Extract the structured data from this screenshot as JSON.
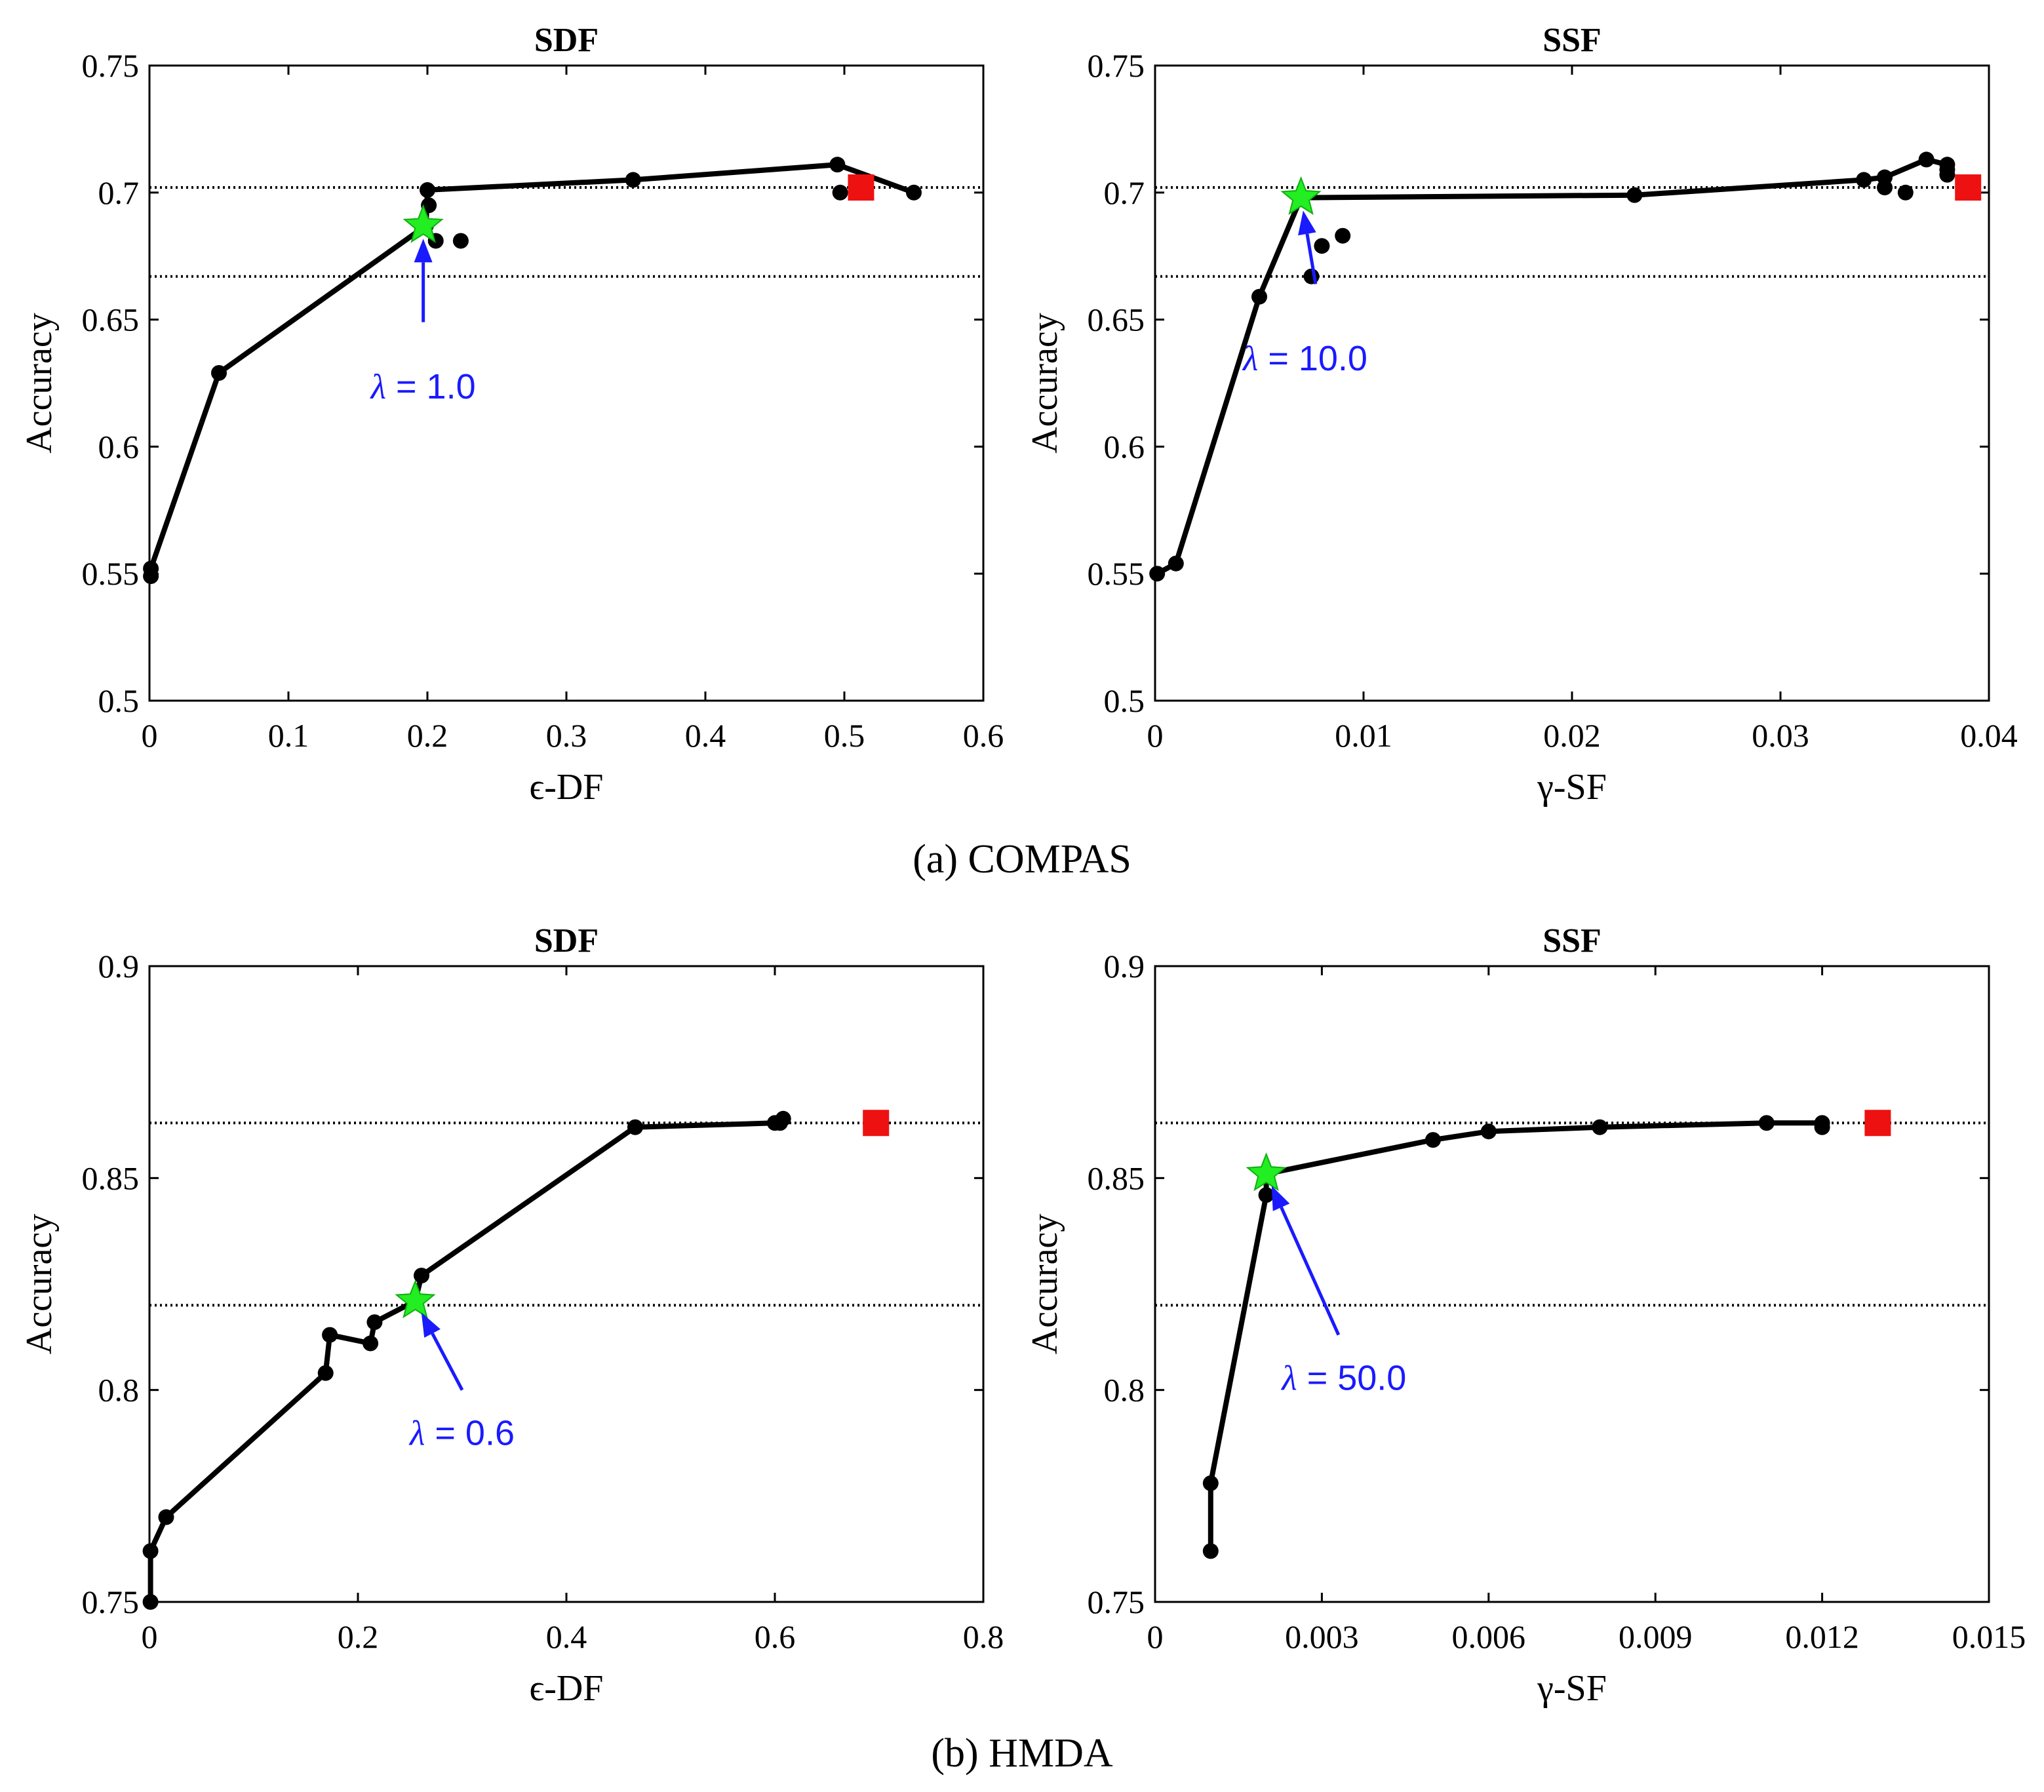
{
  "captions": [
    "(a) COMPAS",
    "(b) HMDA"
  ],
  "colors": {
    "line": "#000000",
    "star": "#22ee22",
    "square": "#ee1111",
    "annotation": "#1a1aff"
  },
  "chart_data": [
    {
      "type": "line",
      "title": "SDF",
      "xlabel": "ϵ-DF",
      "ylabel": "Accuracy",
      "xlim": [
        0,
        0.6
      ],
      "ylim": [
        0.5,
        0.75
      ],
      "xticks": [
        "0",
        "0.1",
        "0.2",
        "0.3",
        "0.4",
        "0.5",
        "0.6"
      ],
      "yticks": [
        "0.5",
        "0.55",
        "0.6",
        "0.65",
        "0.7",
        "0.75"
      ],
      "frontier": [
        [
          0.001,
          0.549
        ],
        [
          0.001,
          0.552
        ],
        [
          0.05,
          0.629
        ],
        [
          0.199,
          0.687
        ],
        [
          0.2,
          0.701
        ],
        [
          0.348,
          0.705
        ],
        [
          0.495,
          0.711
        ],
        [
          0.55,
          0.7
        ]
      ],
      "points": [
        [
          0.201,
          0.695
        ],
        [
          0.206,
          0.681
        ],
        [
          0.224,
          0.681
        ],
        [
          0.497,
          0.7
        ]
      ],
      "hlines": [
        0.702,
        0.667
      ],
      "star": [
        0.197,
        0.687
      ],
      "square": [
        0.512,
        0.702
      ],
      "annotation": {
        "symbol": "λ",
        "text": " = 1.0",
        "arrow_tail": [
          0.197,
          0.649
        ],
        "label_at": [
          0.197,
          0.619
        ]
      }
    },
    {
      "type": "line",
      "title": "SSF",
      "xlabel": "γ-SF",
      "ylabel": "Accuracy",
      "xlim": [
        0,
        0.04
      ],
      "ylim": [
        0.5,
        0.75
      ],
      "xticks": [
        "0",
        "0.01",
        "0.02",
        "0.03",
        "0.04"
      ],
      "yticks": [
        "0.5",
        "0.55",
        "0.6",
        "0.65",
        "0.7",
        "0.75"
      ],
      "frontier": [
        [
          0.0001,
          0.55
        ],
        [
          0.001,
          0.554
        ],
        [
          0.005,
          0.659
        ],
        [
          0.007,
          0.698
        ],
        [
          0.023,
          0.699
        ],
        [
          0.034,
          0.705
        ],
        [
          0.035,
          0.706
        ],
        [
          0.037,
          0.713
        ],
        [
          0.038,
          0.711
        ]
      ],
      "points": [
        [
          0.0075,
          0.667
        ],
        [
          0.008,
          0.679
        ],
        [
          0.009,
          0.683
        ],
        [
          0.035,
          0.702
        ],
        [
          0.036,
          0.7
        ],
        [
          0.038,
          0.709
        ],
        [
          0.038,
          0.707
        ]
      ],
      "hlines": [
        0.702,
        0.667
      ],
      "star": [
        0.007,
        0.698
      ],
      "square": [
        0.039,
        0.702
      ],
      "annotation": {
        "symbol": "λ",
        "text": " = 10.0",
        "arrow_tail": [
          0.0077,
          0.664
        ],
        "label_at": [
          0.0072,
          0.63
        ]
      }
    },
    {
      "type": "line",
      "title": "SDF",
      "xlabel": "ϵ-DF",
      "ylabel": "Accuracy",
      "xlim": [
        0,
        0.8
      ],
      "ylim": [
        0.75,
        0.9
      ],
      "xticks": [
        "0",
        "0.2",
        "0.4",
        "0.6",
        "0.8"
      ],
      "yticks": [
        "0.75",
        "0.8",
        "0.85",
        "0.9"
      ],
      "frontier": [
        [
          0.001,
          0.75
        ],
        [
          0.001,
          0.762
        ],
        [
          0.016,
          0.77
        ],
        [
          0.169,
          0.804
        ],
        [
          0.173,
          0.813
        ],
        [
          0.212,
          0.811
        ],
        [
          0.216,
          0.816
        ],
        [
          0.255,
          0.821
        ],
        [
          0.261,
          0.827
        ],
        [
          0.466,
          0.862
        ],
        [
          0.6,
          0.863
        ],
        [
          0.608,
          0.864
        ]
      ],
      "points": [
        [
          0.605,
          0.863
        ]
      ],
      "hlines": [
        0.863,
        0.82
      ],
      "star": [
        0.255,
        0.821
      ],
      "square": [
        0.697,
        0.863
      ],
      "annotation": {
        "symbol": "λ",
        "text": " = 0.6",
        "arrow_tail": [
          0.3,
          0.8
        ],
        "label_at": [
          0.3,
          0.787
        ]
      }
    },
    {
      "type": "line",
      "title": "SSF",
      "xlabel": "γ-SF",
      "ylabel": "Accuracy",
      "xlim": [
        0,
        0.015
      ],
      "ylim": [
        0.75,
        0.9
      ],
      "xticks": [
        "0",
        "0.003",
        "0.006",
        "0.009",
        "0.012",
        "0.015"
      ],
      "yticks": [
        "0.75",
        "0.8",
        "0.85",
        "0.9"
      ],
      "frontier": [
        [
          0.001,
          0.762
        ],
        [
          0.001,
          0.778
        ],
        [
          0.002,
          0.846
        ],
        [
          0.002,
          0.851
        ],
        [
          0.005,
          0.859
        ],
        [
          0.006,
          0.861
        ],
        [
          0.008,
          0.862
        ],
        [
          0.011,
          0.863
        ],
        [
          0.012,
          0.863
        ]
      ],
      "points": [
        [
          0.012,
          0.862
        ]
      ],
      "hlines": [
        0.863,
        0.82
      ],
      "star": [
        0.002,
        0.851
      ],
      "square": [
        0.013,
        0.863
      ],
      "annotation": {
        "symbol": "λ",
        "text": " = 50.0",
        "arrow_tail": [
          0.0033,
          0.813
        ],
        "label_at": [
          0.0034,
          0.8
        ]
      }
    }
  ]
}
